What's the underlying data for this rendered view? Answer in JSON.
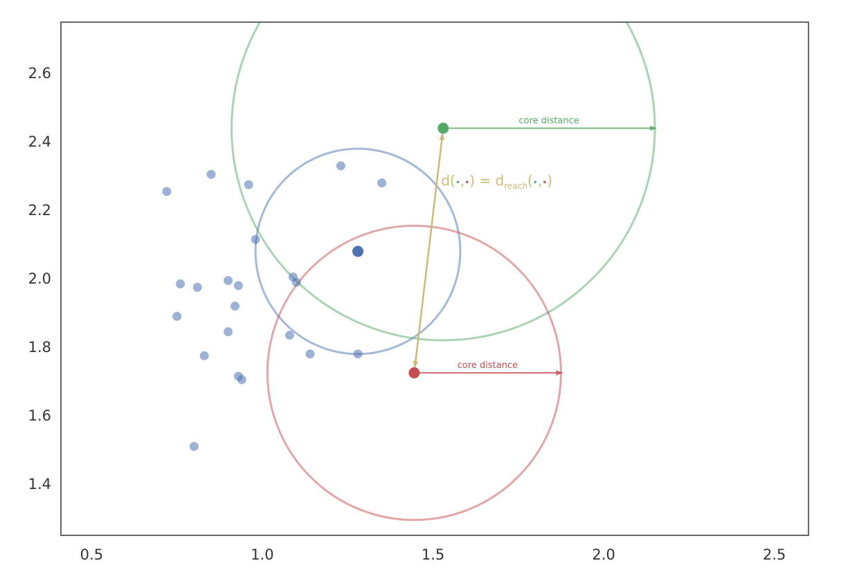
{
  "chart_data": {
    "type": "scatter",
    "xlim": [
      0.41,
      2.6
    ],
    "ylim": [
      1.25,
      2.75
    ],
    "x_ticks": [
      "0.5",
      "1.0",
      "1.5",
      "2.0",
      "2.5"
    ],
    "y_ticks": [
      "1.4",
      "1.6",
      "1.8",
      "2.0",
      "2.2",
      "2.4",
      "2.6"
    ],
    "grid": false,
    "colors": {
      "points": "#4c72b0",
      "green": "#55a868",
      "red": "#c44e52",
      "gold": "#ccb974",
      "frame": "#666666"
    },
    "points": [
      {
        "x": 0.72,
        "y": 2.255
      },
      {
        "x": 0.85,
        "y": 2.305
      },
      {
        "x": 0.96,
        "y": 2.275
      },
      {
        "x": 1.23,
        "y": 2.33
      },
      {
        "x": 1.35,
        "y": 2.28
      },
      {
        "x": 0.98,
        "y": 2.115
      },
      {
        "x": 0.76,
        "y": 1.985
      },
      {
        "x": 0.81,
        "y": 1.975
      },
      {
        "x": 0.9,
        "y": 1.995
      },
      {
        "x": 0.93,
        "y": 1.98
      },
      {
        "x": 1.09,
        "y": 2.005
      },
      {
        "x": 1.1,
        "y": 1.99
      },
      {
        "x": 0.75,
        "y": 1.89
      },
      {
        "x": 0.92,
        "y": 1.92
      },
      {
        "x": 0.9,
        "y": 1.845
      },
      {
        "x": 1.08,
        "y": 1.835
      },
      {
        "x": 1.14,
        "y": 1.78
      },
      {
        "x": 1.28,
        "y": 1.78
      },
      {
        "x": 0.83,
        "y": 1.775
      },
      {
        "x": 0.93,
        "y": 1.715
      },
      {
        "x": 0.94,
        "y": 1.705
      },
      {
        "x": 0.8,
        "y": 1.51
      }
    ],
    "focus_point": {
      "x": 1.28,
      "y": 2.08
    },
    "circles": [
      {
        "name": "blue",
        "cx": 1.28,
        "cy": 2.08,
        "r": 0.3
      },
      {
        "name": "green",
        "cx": 1.53,
        "cy": 2.44,
        "r": 0.62
      },
      {
        "name": "red",
        "cx": 1.445,
        "cy": 1.725,
        "r": 0.43
      }
    ],
    "green_point": {
      "x": 1.53,
      "y": 2.44
    },
    "red_point": {
      "x": 1.445,
      "y": 1.725
    },
    "annotations": {
      "green_core_label": "core distance",
      "red_core_label": "core distance",
      "formula_d": "d(",
      "formula_comma": ",",
      "formula_mid": ") = d",
      "formula_sub": "reach",
      "formula_open": "(",
      "formula_close": ")"
    }
  }
}
